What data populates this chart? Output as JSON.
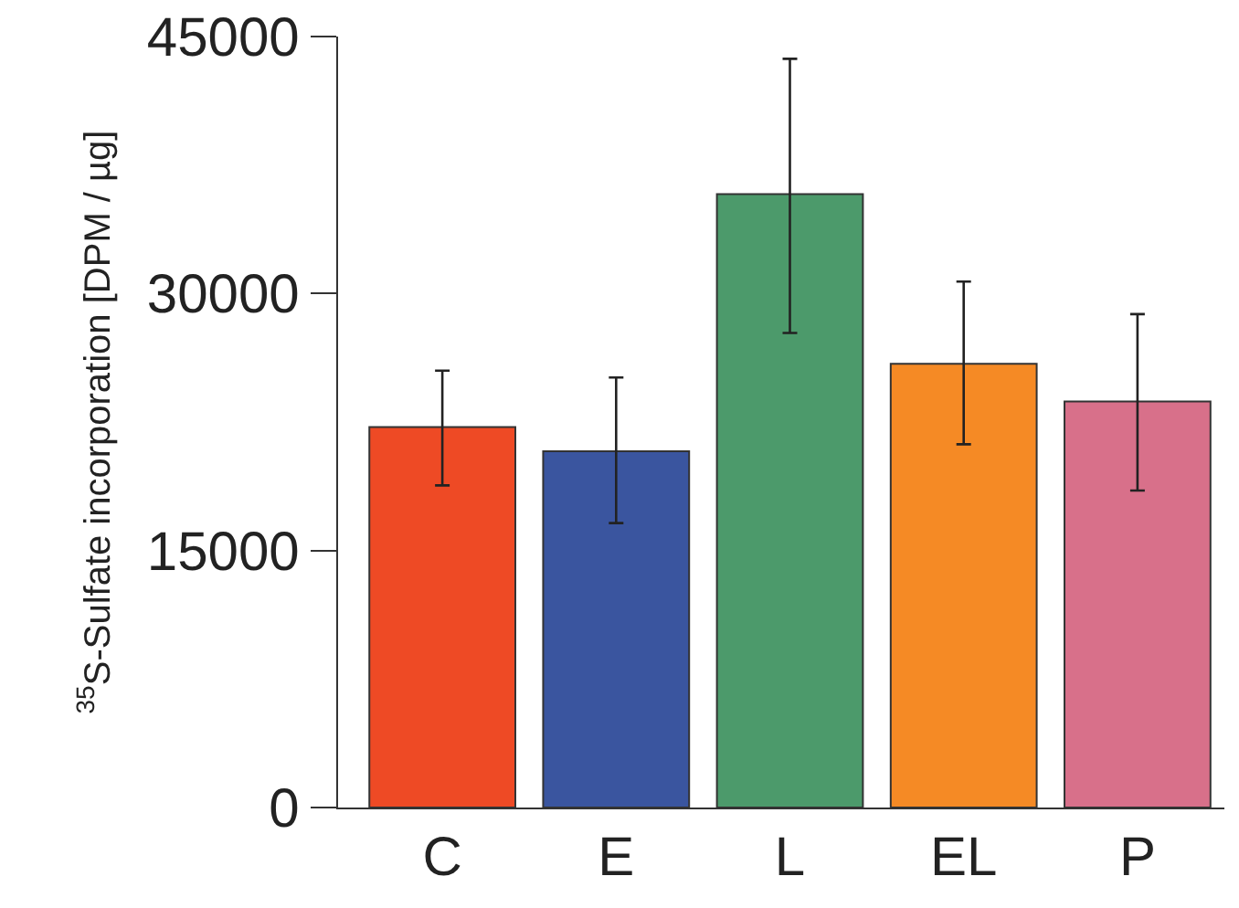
{
  "chart_data": {
    "type": "bar",
    "ylabel": "$^{35}$S-Sulfate incorporation [DPM / µg]",
    "categories": [
      "C",
      "E",
      "L",
      "EL",
      "P"
    ],
    "values": [
      22200,
      20800,
      35800,
      25900,
      23700
    ],
    "colors": [
      "#ee4a25",
      "#3a559f",
      "#4c9a6b",
      "#f58a25",
      "#d8708a"
    ],
    "errors": [
      [
        18800,
        25500
      ],
      [
        16600,
        25100
      ],
      [
        27700,
        43700
      ],
      [
        21200,
        30700
      ],
      [
        18500,
        28800
      ]
    ],
    "ylim": [
      0,
      45000
    ],
    "yticks": [
      0,
      15000,
      30000,
      45000
    ],
    "grid": false,
    "legend": false
  }
}
